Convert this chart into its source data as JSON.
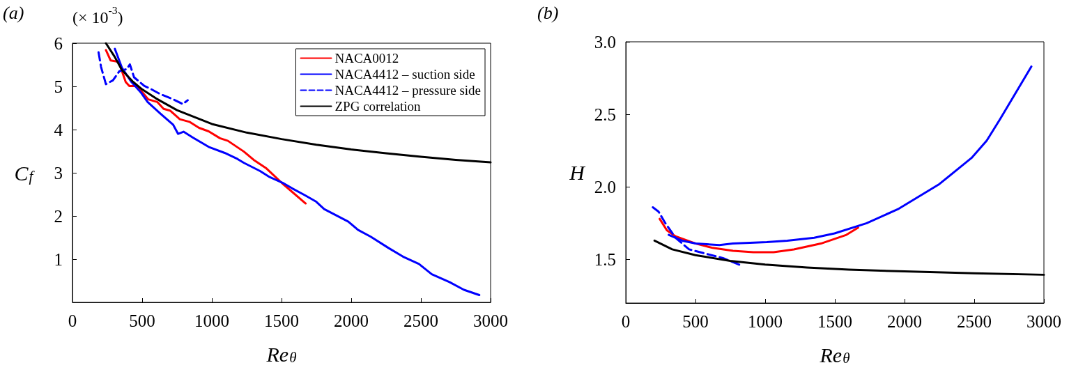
{
  "chart_data": [
    {
      "type": "line",
      "title": "(a)",
      "xlabel": "Re$_{θ}$",
      "ylabel": "C$_{f}$",
      "annotations": [
        "(× 10$^{-3}$)"
      ],
      "xlim": [
        0,
        3000
      ],
      "xticks": [
        0,
        500,
        1000,
        1500,
        2000,
        2500,
        3000
      ],
      "ylim": [
        0,
        6
      ],
      "yticks": [
        1,
        2,
        3,
        4,
        5,
        6
      ],
      "grid": false,
      "legend": "top right",
      "marker": "none",
      "series": [
        {
          "name": "NACA0012",
          "color": "#ff0000",
          "line_style": "solid",
          "x": [
            240,
            274,
            332,
            382,
            408,
            459,
            505,
            544,
            608,
            654,
            700,
            770,
            839,
            908,
            977,
            1058,
            1115,
            1230,
            1300,
            1392,
            1507,
            1673
          ],
          "values": [
            5.84,
            5.6,
            5.57,
            5.1,
            5.01,
            5.01,
            4.85,
            4.7,
            4.64,
            4.48,
            4.44,
            4.24,
            4.18,
            4.04,
            3.96,
            3.8,
            3.74,
            3.49,
            3.3,
            3.1,
            2.75,
            2.29
          ]
        },
        {
          "name": "NACA4412 – suction side",
          "color": "#0000ff",
          "line_style": "solid",
          "x": [
            304,
            355,
            424,
            493,
            539,
            631,
            723,
            758,
            797,
            862,
            977,
            1092,
            1184,
            1230,
            1346,
            1415,
            1507,
            1576,
            1668,
            1749,
            1806,
            1979,
            2048,
            2140,
            2267,
            2371,
            2486,
            2578,
            2705,
            2809,
            2919
          ],
          "values": [
            5.87,
            5.43,
            5.1,
            4.85,
            4.64,
            4.37,
            4.11,
            3.9,
            3.95,
            3.82,
            3.6,
            3.46,
            3.32,
            3.23,
            3.04,
            2.9,
            2.77,
            2.64,
            2.48,
            2.33,
            2.16,
            1.87,
            1.68,
            1.52,
            1.26,
            1.06,
            0.89,
            0.65,
            0.47,
            0.29,
            0.17
          ]
        },
        {
          "name": "NACA4412 – pressure side",
          "color": "#0000ff",
          "line_style": "dashed",
          "x": [
            187,
            205,
            240,
            290,
            336,
            389,
            412,
            442,
            516,
            551,
            631,
            723,
            792,
            827
          ],
          "values": [
            5.79,
            5.45,
            5.05,
            5.14,
            5.35,
            5.4,
            5.51,
            5.21,
            5.01,
            4.96,
            4.82,
            4.7,
            4.59,
            4.68
          ]
        },
        {
          "name": "ZPG correlation",
          "color": "#000000",
          "line_style": "solid",
          "x": [
            240,
            300,
            355,
            430,
            500,
            600,
            750,
            1000,
            1250,
            1500,
            1750,
            2000,
            2250,
            2500,
            2750,
            3000
          ],
          "values": [
            6.0,
            5.7,
            5.38,
            5.12,
            4.93,
            4.72,
            4.45,
            4.13,
            3.93,
            3.78,
            3.65,
            3.54,
            3.45,
            3.37,
            3.3,
            3.24
          ]
        }
      ]
    },
    {
      "type": "line",
      "title": "(b)",
      "xlabel": "Re$_{θ}$",
      "ylabel": "H",
      "xlim": [
        0,
        3000
      ],
      "xticks": [
        0,
        500,
        1000,
        1500,
        2000,
        2500,
        3000
      ],
      "ylim": [
        1.2,
        3.0
      ],
      "yticks": [
        {
          "value": 1.5,
          "label": "1.5"
        },
        {
          "value": 2.0,
          "label": "2.0"
        },
        {
          "value": 2.5,
          "label": "2.5"
        },
        {
          "value": 3.0,
          "label": "3.0"
        }
      ],
      "grid": false,
      "marker": "none",
      "series": [
        {
          "color": "#ff0000",
          "line_style": "solid",
          "x": [
            243,
            296,
            357,
            502,
            624,
            769,
            915,
            1061,
            1206,
            1400,
            1583,
            1667
          ],
          "values": [
            1.78,
            1.7,
            1.66,
            1.61,
            1.58,
            1.56,
            1.55,
            1.55,
            1.57,
            1.61,
            1.67,
            1.72
          ]
        },
        {
          "color": "#0000ff",
          "line_style": "solid",
          "x": [
            308,
            405,
            502,
            672,
            769,
            1012,
            1158,
            1352,
            1498,
            1728,
            1959,
            2250,
            2481,
            2590,
            2687,
            2910
          ],
          "values": [
            1.67,
            1.63,
            1.61,
            1.6,
            1.61,
            1.62,
            1.63,
            1.65,
            1.68,
            1.75,
            1.85,
            2.02,
            2.2,
            2.32,
            2.47,
            2.83
          ]
        },
        {
          "color": "#0000ff",
          "line_style": "dashed",
          "x": [
            194,
            235,
            284,
            357,
            454,
            575,
            697,
            825
          ],
          "values": [
            1.86,
            1.83,
            1.75,
            1.65,
            1.57,
            1.54,
            1.51,
            1.46
          ]
        },
        {
          "color": "#000000",
          "line_style": "solid",
          "x": [
            206,
            333,
            500,
            750,
            1000,
            1300,
            1600,
            2000,
            2500,
            3000
          ],
          "values": [
            1.63,
            1.57,
            1.53,
            1.49,
            1.465,
            1.445,
            1.43,
            1.418,
            1.405,
            1.395
          ]
        }
      ]
    }
  ]
}
